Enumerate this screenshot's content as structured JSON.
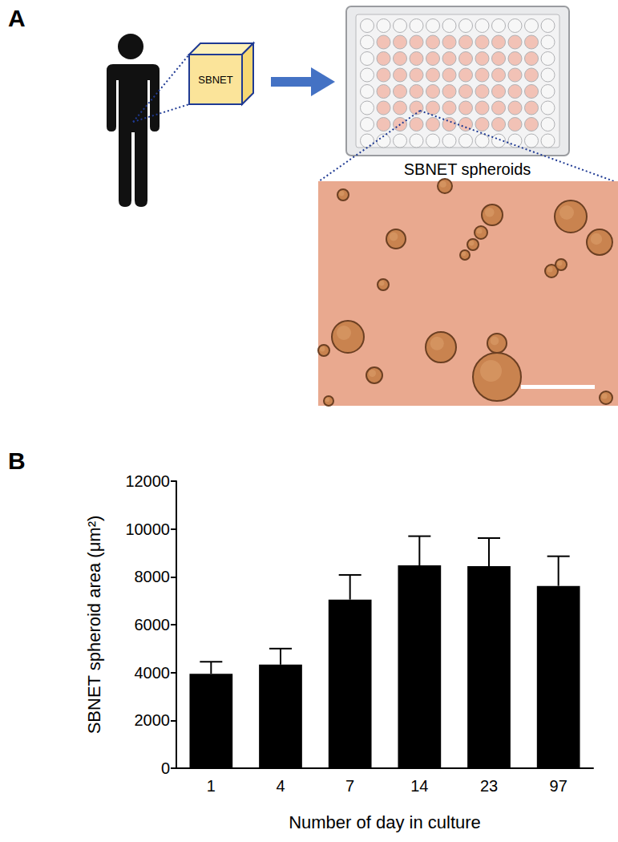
{
  "panel_labels": [
    "A",
    "B"
  ],
  "schematic": {
    "box_label": "SBNET",
    "image_caption": "SBNET spheroids"
  },
  "chart_data": {
    "type": "bar",
    "categories": [
      "1",
      "4",
      "7",
      "14",
      "23",
      "97"
    ],
    "values": [
      3950,
      4330,
      7050,
      8480,
      8450,
      7620
    ],
    "errors": [
      500,
      670,
      1030,
      1220,
      1170,
      1240
    ],
    "color": "#000000",
    "x_label": "Number of day in culture",
    "y_label": "SBNET spheroid area (μm²)",
    "ylim": [
      0,
      12000
    ],
    "yticks": [
      0,
      2000,
      4000,
      6000,
      8000,
      10000,
      12000
    ],
    "grid": false
  }
}
